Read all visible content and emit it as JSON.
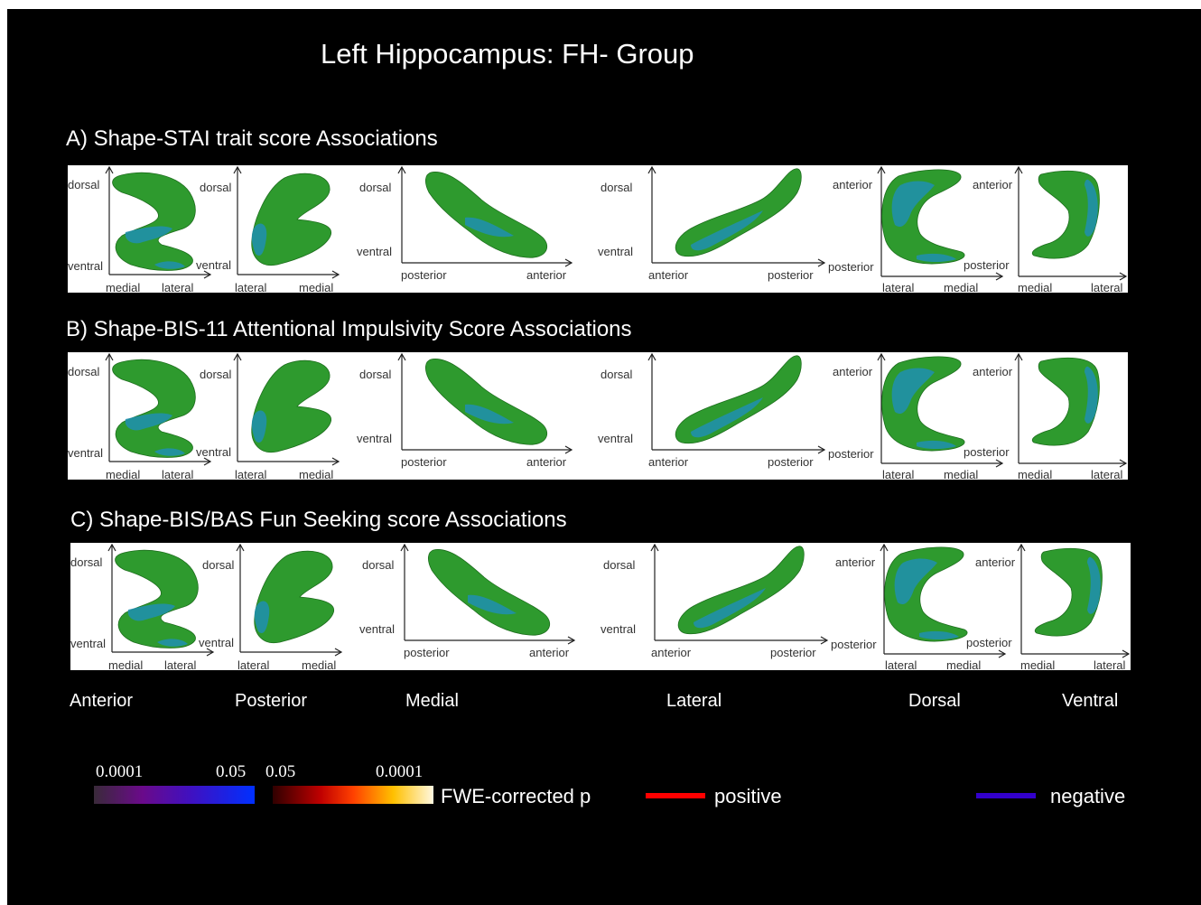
{
  "title": "Left Hippocampus: FH- Group",
  "rows": [
    {
      "label": "A) Shape-STAI trait score Associations"
    },
    {
      "label": "B) Shape-BIS-11 Attentional Impulsivity Score Associations"
    },
    {
      "label": "C) Shape-BIS/BAS Fun Seeking score Associations"
    }
  ],
  "axis_labels": {
    "dorsal": "dorsal",
    "ventral": "ventral",
    "medial": "medial",
    "lateral": "lateral",
    "posterior": "posterior",
    "anterior": "anterior"
  },
  "views": [
    "Anterior",
    "Posterior",
    "Medial",
    "Lateral",
    "Dorsal",
    "Ventral"
  ],
  "legend": {
    "neg_min": "0.0001",
    "neg_max": "0.05",
    "pos_min": "0.05",
    "pos_max": "0.0001",
    "scale_label": "FWE-corrected p",
    "positive_label": "positive",
    "negative_label": "negative",
    "positive_color": "#ff0000",
    "negative_color": "#3300cc"
  },
  "colors": {
    "surface": "#2e9a2e",
    "association": "#1f8fb0",
    "background": "#000000"
  }
}
